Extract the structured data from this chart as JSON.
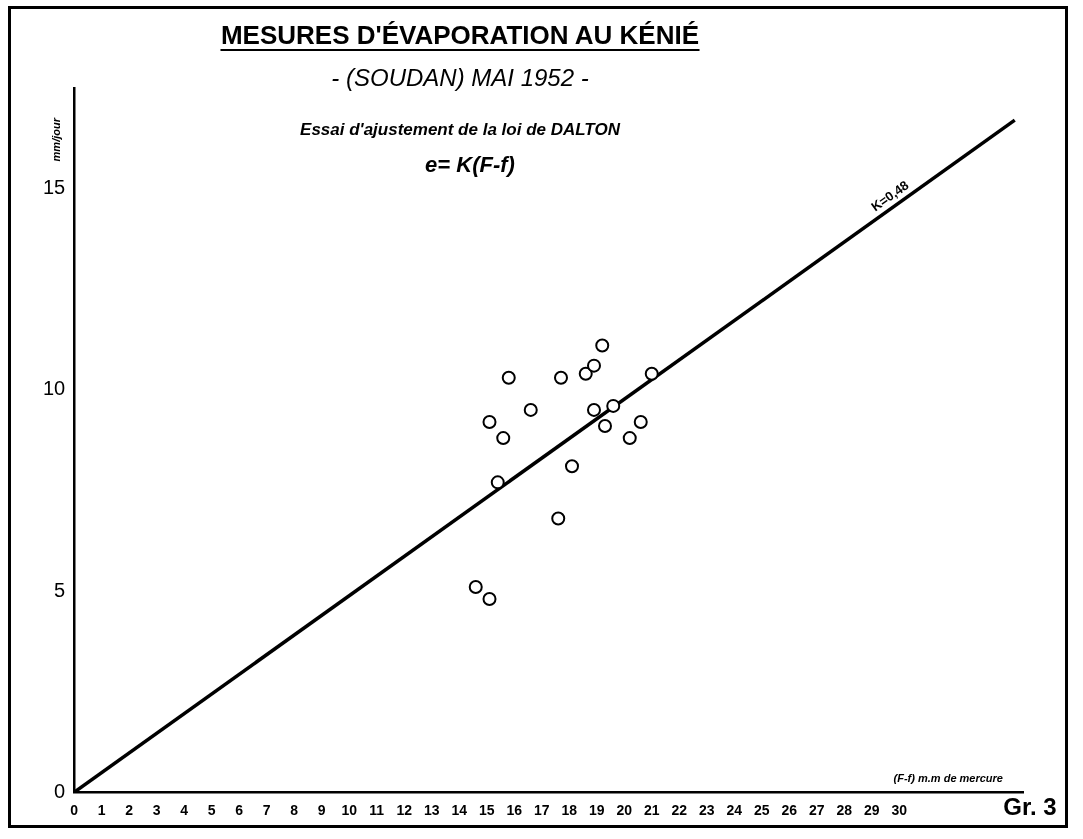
{
  "chart_data": {
    "type": "scatter",
    "title": "MESURES D'ÉVAPORATION AU KÉNIÉ",
    "subtitle": "- (SOUDAN) MAI 1952 -",
    "xlabel": "(F-f) m.m de mercure",
    "ylabel": "mm/jour",
    "annotations": [
      "Essai d'ajustement de la loi de DALTON",
      "e= K(F-f)",
      "Gr. 3"
    ],
    "xlim": [
      0,
      34.5
    ],
    "ylim": [
      0,
      17.5
    ],
    "xticks": [
      0,
      1,
      2,
      3,
      4,
      5,
      6,
      7,
      8,
      9,
      10,
      11,
      12,
      13,
      14,
      15,
      16,
      17,
      18,
      19,
      20,
      21,
      22,
      23,
      24,
      25,
      26,
      27,
      28,
      29,
      30
    ],
    "yticks": [
      0,
      5,
      10,
      15
    ],
    "grid": false,
    "legend": false,
    "marker": "circle",
    "series": [
      {
        "color": "#000000",
        "x": [
          19.2,
          15.8,
          17.7,
          18.6,
          18.9,
          21.0,
          16.6,
          15.1,
          18.9,
          19.6,
          20.6,
          19.3,
          15.6,
          20.2,
          18.1,
          15.4,
          17.6,
          14.6,
          15.1
        ],
        "values": [
          11.1,
          10.3,
          10.3,
          10.4,
          10.6,
          10.4,
          9.5,
          9.2,
          9.5,
          9.6,
          9.2,
          9.1,
          8.8,
          8.8,
          8.1,
          7.7,
          6.8,
          5.1,
          4.8
        ]
      },
      {
        "type": "line",
        "name": "K=0,48",
        "color": "#000000",
        "marker": "none",
        "x": [
          0,
          34.2
        ],
        "values": [
          0,
          16.7
        ]
      }
    ]
  }
}
